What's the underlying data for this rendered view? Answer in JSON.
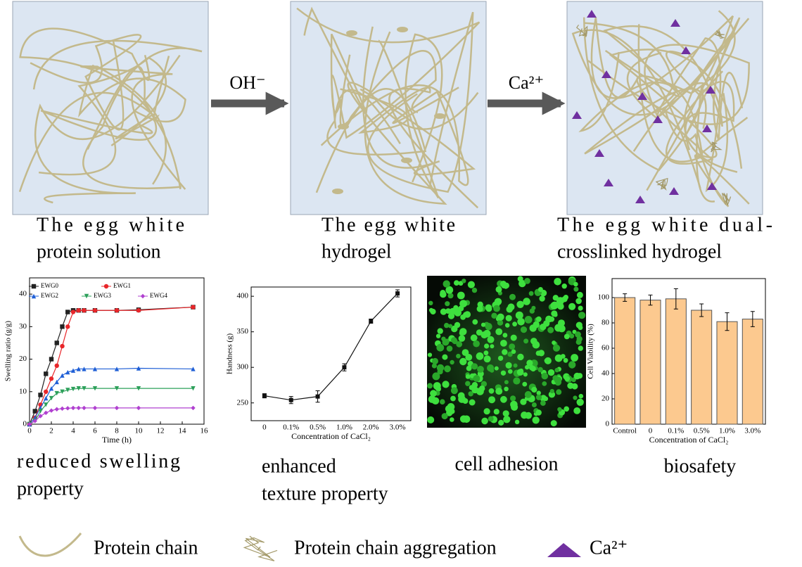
{
  "diagram": {
    "arrows": [
      {
        "label": "OH⁻"
      },
      {
        "label": "Ca²⁺"
      }
    ]
  },
  "captions": [
    {
      "lines": [
        "The egg white",
        "protein solution"
      ]
    },
    {
      "lines": [
        "The egg white",
        "hydrogel"
      ]
    },
    {
      "lines": [
        "The egg white dual-",
        "crosslinked hydrogel"
      ]
    },
    {
      "lines": [
        "reduced swelling",
        "property"
      ]
    },
    {
      "lines": [
        "enhanced",
        "texture property"
      ]
    },
    {
      "lines": [
        "cell adhesion"
      ]
    },
    {
      "lines": [
        "biosafety"
      ]
    }
  ],
  "legend": [
    "Protein chain",
    "Protein chain aggregation",
    "Ca²⁺"
  ],
  "chart_data": [
    {
      "type": "line",
      "x_label": "Time (h)",
      "y_label": "Swelling ratio (g/g)",
      "x": [
        0,
        0.5,
        1,
        1.5,
        2,
        2.5,
        3,
        3.5,
        4,
        4.5,
        5,
        6,
        8,
        10,
        15
      ],
      "series": [
        {
          "name": "EWG0",
          "color": "#222222",
          "marker": "square",
          "values": [
            0,
            4,
            9,
            15.5,
            20,
            25,
            30,
            34.5,
            35,
            35,
            35,
            35,
            35,
            35.2,
            36
          ]
        },
        {
          "name": "EWG1",
          "color": "#e8262a",
          "marker": "circle",
          "values": [
            0,
            2,
            6,
            10,
            14,
            18,
            24,
            30,
            34.5,
            35,
            35,
            35,
            35,
            35,
            36
          ]
        },
        {
          "name": "EWG2",
          "color": "#1f5fd6",
          "marker": "triangle-up",
          "values": [
            0,
            2,
            5,
            8,
            11,
            13,
            15,
            16,
            16.5,
            17,
            17,
            17,
            17,
            17.2,
            17
          ]
        },
        {
          "name": "EWG3",
          "color": "#2ca05a",
          "marker": "triangle-down",
          "values": [
            0,
            1,
            4,
            6,
            8,
            9.5,
            10,
            10.5,
            10.8,
            11,
            11,
            11,
            11,
            11,
            11
          ]
        },
        {
          "name": "EWG4",
          "color": "#b040d0",
          "marker": "diamond",
          "values": [
            0,
            1,
            2.5,
            3.5,
            4.2,
            4.6,
            4.8,
            4.9,
            5,
            5,
            5,
            5,
            5,
            5,
            5
          ]
        }
      ],
      "xlim": [
        0,
        16
      ],
      "xticks": [
        0,
        2,
        4,
        6,
        8,
        10,
        12,
        14,
        16
      ],
      "ylim": [
        0,
        45
      ],
      "yticks": [
        0,
        10,
        20,
        30,
        40
      ]
    },
    {
      "type": "line",
      "x_label": "Concentration of CaCl₂",
      "y_label": "Handness (g)",
      "categories": [
        "0",
        "0.1%",
        "0.5%",
        "1.0%",
        "2.0%",
        "3.0%"
      ],
      "values": [
        260,
        254,
        259,
        300,
        365,
        404
      ],
      "errors": [
        3,
        5,
        8,
        5,
        3,
        5
      ],
      "color": "#111111",
      "ylim": [
        225,
        413
      ],
      "yticks": [
        250,
        300,
        350,
        400
      ]
    },
    {
      "type": "bar",
      "x_label": "Concentration of CaCl₂",
      "y_label": "Cell Viability (%)",
      "categories": [
        "Control",
        "0",
        "0.1%",
        "0.5%",
        "1.0%",
        "3.0%"
      ],
      "values": [
        100,
        98,
        99,
        90,
        81,
        83
      ],
      "errors": [
        3,
        4,
        8,
        5,
        7,
        6
      ],
      "color": "#fcc98f",
      "ylim": [
        0,
        115
      ],
      "yticks": [
        0,
        20,
        40,
        60,
        80,
        100
      ]
    }
  ]
}
